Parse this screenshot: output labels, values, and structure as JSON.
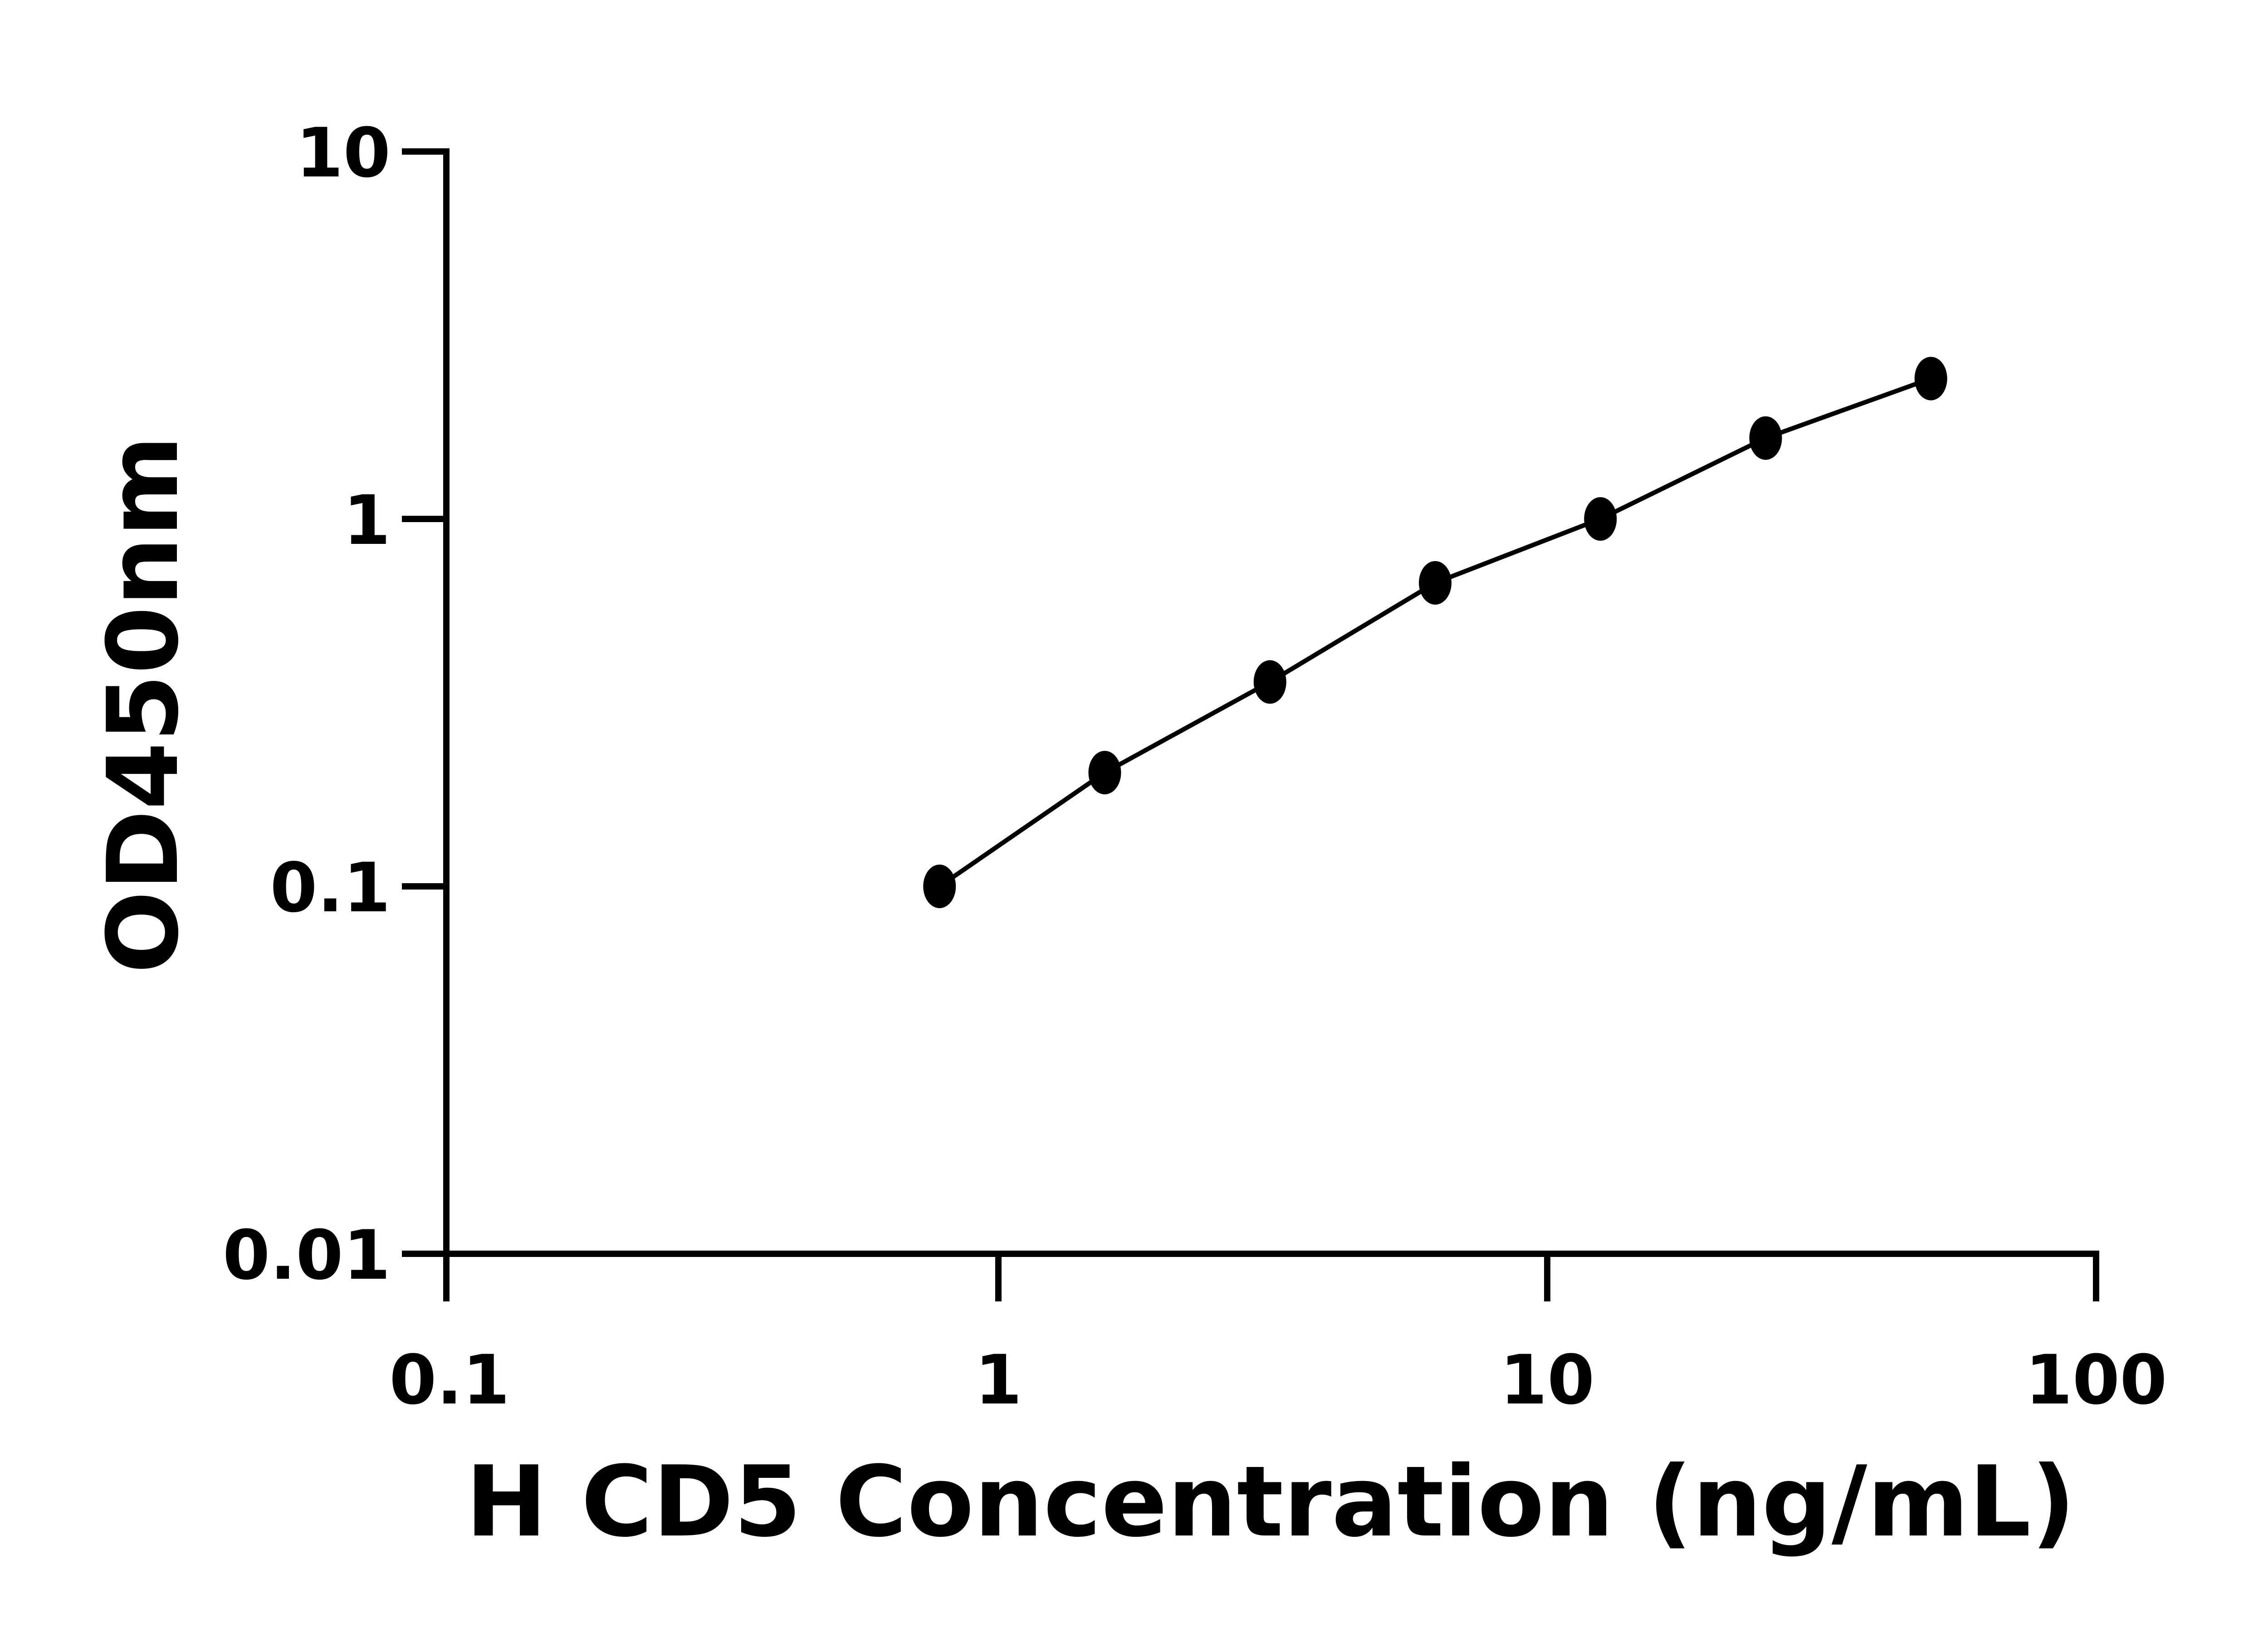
{
  "chart_data": {
    "type": "line",
    "title": "",
    "xlabel": "H CD5 Concentration (ng/mL)",
    "ylabel": "OD450nm",
    "xscale": "log",
    "yscale": "log",
    "xlim": [
      0.1,
      100
    ],
    "ylim": [
      0.01,
      10
    ],
    "xticks": [
      0.1,
      1,
      10,
      100
    ],
    "xtick_labels": [
      "0.1",
      "1",
      "10",
      "100"
    ],
    "yticks": [
      0.01,
      0.1,
      1,
      10
    ],
    "ytick_labels": [
      "0.01",
      "0.1",
      "1",
      "10"
    ],
    "grid": false,
    "series": [
      {
        "x": [
          0.78125,
          1.5625,
          3.125,
          6.25,
          12.5,
          25,
          50
        ],
        "y": [
          0.1,
          0.204,
          0.36,
          0.67,
          1.0,
          1.66,
          2.41
        ],
        "marker": "filled-circle",
        "color": "#000000"
      }
    ]
  }
}
